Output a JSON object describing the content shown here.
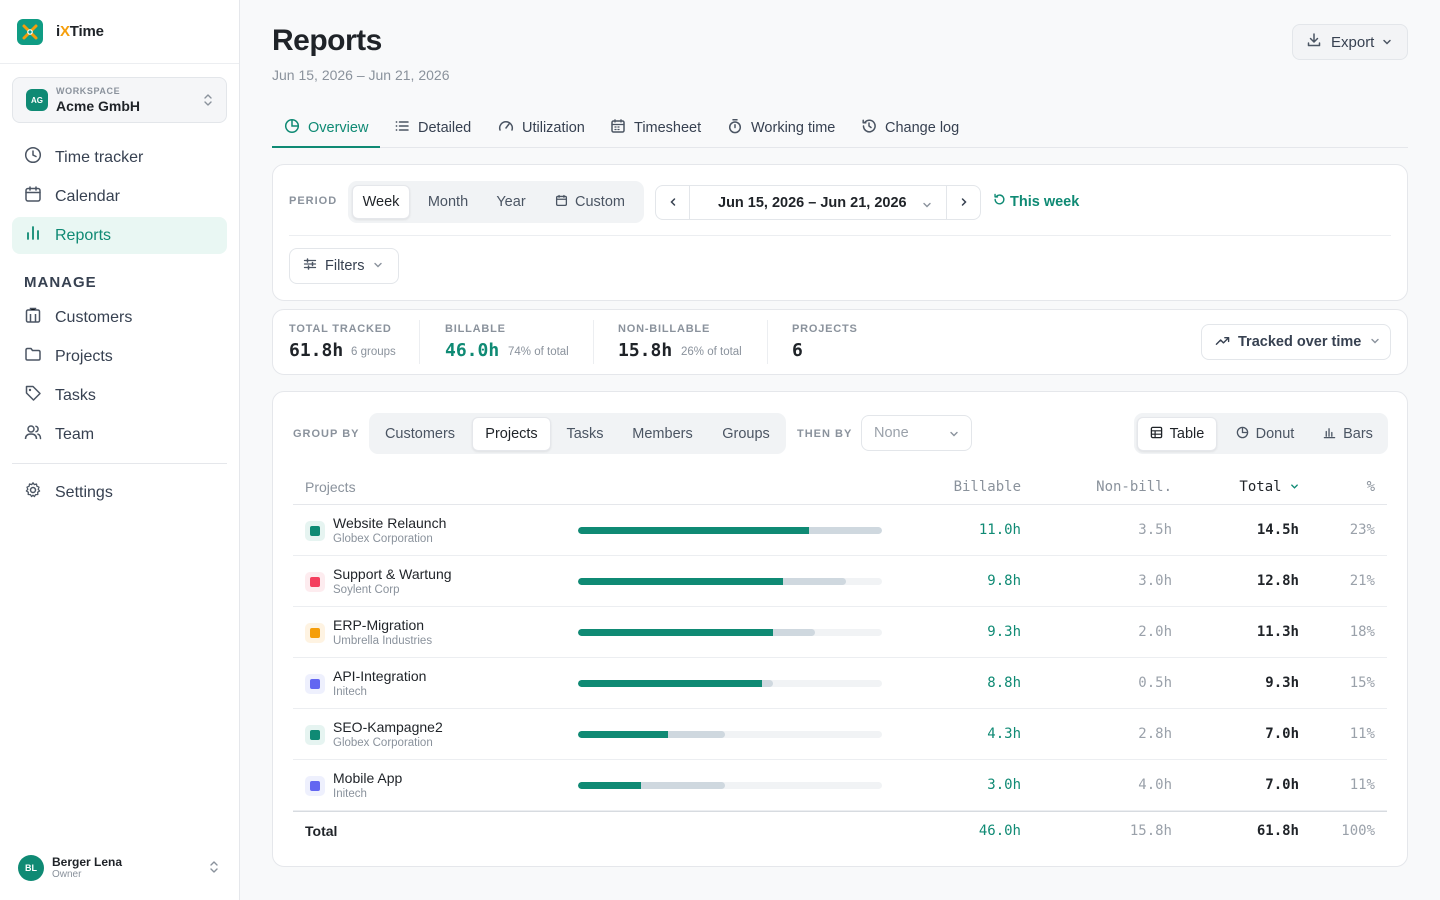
{
  "app": {
    "name_prefix": "i",
    "name_accent": "X",
    "name_suffix": "Time"
  },
  "workspace": {
    "label": "WORKSPACE",
    "initials": "AG",
    "name": "Acme GmbH"
  },
  "nav": {
    "items": [
      {
        "label": "Time tracker",
        "icon": "clock-icon"
      },
      {
        "label": "Calendar",
        "icon": "calendar-icon"
      },
      {
        "label": "Reports",
        "icon": "bar-chart-icon",
        "active": true
      }
    ],
    "manage_label": "MANAGE",
    "manage_items": [
      {
        "label": "Customers",
        "icon": "building-icon"
      },
      {
        "label": "Projects",
        "icon": "folder-icon"
      },
      {
        "label": "Tasks",
        "icon": "tag-icon"
      },
      {
        "label": "Team",
        "icon": "users-icon"
      }
    ],
    "settings": {
      "label": "Settings",
      "icon": "gear-icon"
    }
  },
  "user": {
    "initials": "BL",
    "name": "Berger Lena",
    "role": "Owner"
  },
  "header": {
    "title": "Reports",
    "subtitle": "Jun 15, 2026 – Jun 21, 2026",
    "export_label": "Export"
  },
  "tabs": [
    {
      "label": "Overview",
      "icon": "pie-icon",
      "active": true
    },
    {
      "label": "Detailed",
      "icon": "list-icon"
    },
    {
      "label": "Utilization",
      "icon": "gauge-icon"
    },
    {
      "label": "Timesheet",
      "icon": "calendar-icon"
    },
    {
      "label": "Working time",
      "icon": "stopwatch-icon"
    },
    {
      "label": "Change log",
      "icon": "history-icon"
    }
  ],
  "period": {
    "label": "PERIOD",
    "options": [
      "Week",
      "Month",
      "Year",
      "Custom"
    ],
    "selected": "Week",
    "range": "Jun 15, 2026 – Jun 21, 2026",
    "this_week": "This week",
    "filters": "Filters"
  },
  "summary": {
    "total": {
      "label": "TOTAL TRACKED",
      "value": "61.8h",
      "note": "6 groups"
    },
    "billable": {
      "label": "BILLABLE",
      "value": "46.0h",
      "note": "74% of total"
    },
    "non_billable": {
      "label": "NON-BILLABLE",
      "value": "15.8h",
      "note": "26% of total"
    },
    "projects": {
      "label": "PROJECTS",
      "value": "6"
    },
    "view_select": "Tracked over time"
  },
  "grouping": {
    "group_label": "GROUP BY",
    "options": [
      "Customers",
      "Projects",
      "Tasks",
      "Members",
      "Groups"
    ],
    "selected": "Projects",
    "then_label": "THEN BY",
    "then_value": "None",
    "views": [
      "Table",
      "Donut",
      "Bars"
    ],
    "selected_view": "Table"
  },
  "table": {
    "headers": {
      "name": "Projects",
      "billable": "Billable",
      "non_billable": "Non-bill.",
      "total": "Total",
      "pct": "%"
    },
    "max_hours": 14.5,
    "rows": [
      {
        "name": "Website Relaunch",
        "client": "Globex Corporation",
        "color": "#0f8a74",
        "tint": "#e6f4f1",
        "billable_h": 11.0,
        "total_h": 14.5,
        "billable": "11.0h",
        "non_billable": "3.5h",
        "total": "14.5h",
        "pct": "23%"
      },
      {
        "name": "Support & Wartung",
        "client": "Soylent Corp",
        "color": "#f43f5e",
        "tint": "#fdecef",
        "billable_h": 9.8,
        "total_h": 12.8,
        "billable": "9.8h",
        "non_billable": "3.0h",
        "total": "12.8h",
        "pct": "21%"
      },
      {
        "name": "ERP-Migration",
        "client": "Umbrella Industries",
        "color": "#f59e0b",
        "tint": "#fef3e2",
        "billable_h": 9.3,
        "total_h": 11.3,
        "billable": "9.3h",
        "non_billable": "2.0h",
        "total": "11.3h",
        "pct": "18%"
      },
      {
        "name": "API-Integration",
        "client": "Initech",
        "color": "#6366f1",
        "tint": "#eef0fd",
        "billable_h": 8.8,
        "total_h": 9.3,
        "billable": "8.8h",
        "non_billable": "0.5h",
        "total": "9.3h",
        "pct": "15%"
      },
      {
        "name": "SEO-Kampagne2",
        "client": "Globex Corporation",
        "color": "#0f8a74",
        "tint": "#e6f4f1",
        "billable_h": 4.3,
        "total_h": 7.0,
        "billable": "4.3h",
        "non_billable": "2.8h",
        "total": "7.0h",
        "pct": "11%"
      },
      {
        "name": "Mobile App",
        "client": "Initech",
        "color": "#6366f1",
        "tint": "#eef0fd",
        "billable_h": 3.0,
        "total_h": 7.0,
        "billable": "3.0h",
        "non_billable": "4.0h",
        "total": "7.0h",
        "pct": "11%"
      }
    ],
    "total_row": {
      "label": "Total",
      "billable": "46.0h",
      "non_billable": "15.8h",
      "total": "61.8h",
      "pct": "100%"
    }
  },
  "colors": {
    "accent": "#0f8a74",
    "accent_light": "#e9f7f3",
    "muted_bar": "#cfd8df"
  }
}
